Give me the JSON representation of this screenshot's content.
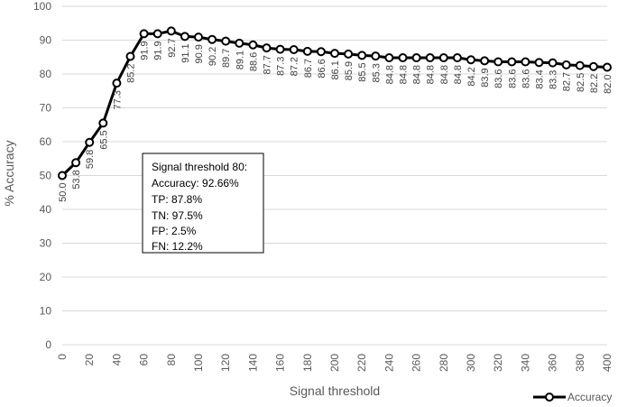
{
  "chart_data": {
    "type": "line",
    "title": "",
    "xlabel": "Signal threshold",
    "ylabel": "% Accuracy",
    "xlim": [
      0,
      400
    ],
    "ylim": [
      0,
      100
    ],
    "x_ticks": [
      0,
      20,
      40,
      60,
      80,
      100,
      120,
      140,
      160,
      180,
      200,
      220,
      240,
      260,
      280,
      300,
      320,
      340,
      360,
      380,
      400
    ],
    "y_ticks": [
      0,
      10,
      20,
      30,
      40,
      50,
      60,
      70,
      80,
      90,
      100
    ],
    "grid": "horizontal",
    "legend_position": "bottom-right",
    "x": [
      0,
      10,
      20,
      30,
      40,
      50,
      60,
      70,
      80,
      90,
      100,
      110,
      120,
      130,
      140,
      150,
      160,
      170,
      180,
      190,
      200,
      210,
      220,
      230,
      240,
      250,
      260,
      270,
      280,
      290,
      300,
      310,
      320,
      330,
      340,
      350,
      360,
      370,
      380,
      390,
      400
    ],
    "series": [
      {
        "name": "Accuracy",
        "color": "#000000",
        "values": [
          50.0,
          53.8,
          59.8,
          65.5,
          77.3,
          85.2,
          91.9,
          91.9,
          92.7,
          91.1,
          90.9,
          90.2,
          89.7,
          89.1,
          88.6,
          87.7,
          87.3,
          87.2,
          86.7,
          86.6,
          86.1,
          85.9,
          85.5,
          85.3,
          84.8,
          84.8,
          84.8,
          84.8,
          84.8,
          84.8,
          84.2,
          83.9,
          83.6,
          83.6,
          83.6,
          83.4,
          83.3,
          82.7,
          82.5,
          82.2,
          82.0
        ],
        "data_labels": [
          "50.0",
          "53.8",
          "59.8",
          "65.5",
          "77.3",
          "85.2",
          "91.9",
          "91.9",
          "92.7",
          "91.1",
          "90.9",
          "90.2",
          "89.7",
          "89.1",
          "88.6",
          "87.7",
          "87.3",
          "87.2",
          "86.7",
          "86.6",
          "86.1",
          "85.9",
          "85.5",
          "85.3",
          "84.8",
          "84.8",
          "84.8",
          "84.8",
          "84.8",
          "84.8",
          "84.2",
          "83.9",
          "83.6",
          "83.6",
          "83.6",
          "83.4",
          "83.3",
          "82.7",
          "82.5",
          "82.2",
          "82.0"
        ]
      }
    ],
    "annotation": {
      "lines": [
        "Signal threshold 80:",
        "Accuracy: 92.66%",
        "TP: 87.8%",
        "TN: 97.5%",
        "FP: 2.5%",
        "FN: 12.2%"
      ]
    }
  }
}
